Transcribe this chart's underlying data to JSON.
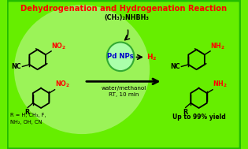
{
  "title": "Dehydrogenation and Hydrogenation Reaction",
  "title_color": "#FF0000",
  "bg_color": "#66EE00",
  "reagent_text": "(CH₃)₂NHBH₃",
  "catalyst_text": "Pd NPs",
  "h2_text": "H₂",
  "conditions_text": "water/methanol\nRT, 10 min",
  "r_groups_text": "R = H, CH₃, F,\nNH₂, OH, CN",
  "yield_text": "Up to 99% yield",
  "no2_color": "#FF0000",
  "nh2_color": "#FF0000",
  "h2_color": "#FF0000",
  "catalyst_color": "#0000CC",
  "arrow_color": "#000000",
  "struct_color": "#000000",
  "catalyst_circle_color": "#AAFFAA",
  "catalyst_circle_edge": "#33AA33"
}
